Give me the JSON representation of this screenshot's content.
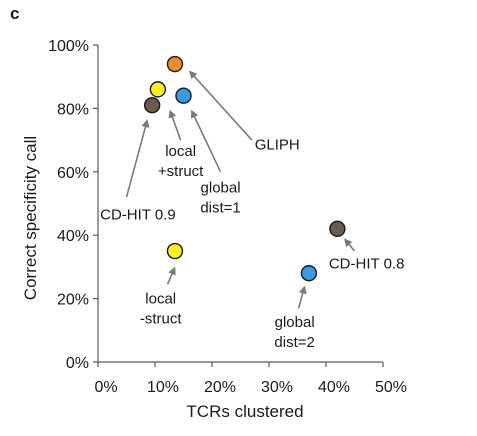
{
  "panel_label": "c",
  "colors": {
    "orange": "#f28a30",
    "blue": "#3a9ae0",
    "yellow": "#ffee22",
    "brown": "#6b5a4f"
  },
  "chart_data": {
    "type": "scatter",
    "xlabel": "TCRs clustered",
    "ylabel": "Correct specificity call",
    "xlim": [
      0,
      50
    ],
    "ylim": [
      0,
      100
    ],
    "x_ticks": [
      "0%",
      "10%",
      "20%",
      "30%",
      "40%",
      "50%"
    ],
    "y_ticks": [
      "0%",
      "20%",
      "40%",
      "60%",
      "80%",
      "100%"
    ],
    "grid": false,
    "points": [
      {
        "method": "GLIPH",
        "x": 13.5,
        "y": 94,
        "color": "orange"
      },
      {
        "method": "local +struct",
        "x": 10.5,
        "y": 86,
        "color": "yellow"
      },
      {
        "method": "global dist=1",
        "x": 15,
        "y": 84,
        "color": "blue"
      },
      {
        "method": "CD-HIT 0.9",
        "x": 9.5,
        "y": 81,
        "color": "brown"
      },
      {
        "method": "local -struct",
        "x": 13.5,
        "y": 35,
        "color": "yellow"
      },
      {
        "method": "CD-HIT 0.8",
        "x": 42,
        "y": 42,
        "color": "brown"
      },
      {
        "method": "global dist=2",
        "x": 37,
        "y": 28,
        "color": "blue"
      }
    ],
    "annotations": [
      {
        "lines": [
          "GLIPH"
        ],
        "text_x": 27.5,
        "text_y": 67,
        "anchor": "start",
        "arrow_from": [
          27,
          70
        ],
        "arrow_to": [
          16.2,
          91.5
        ]
      },
      {
        "lines": [
          "local",
          "+struct"
        ],
        "text_x": 14.5,
        "text_y": 65,
        "anchor": "middle",
        "arrow_from": [
          14.5,
          70
        ],
        "arrow_to": [
          12.7,
          79
        ]
      },
      {
        "lines": [
          "global",
          "dist=1"
        ],
        "text_x": 21.5,
        "text_y": 53.5,
        "anchor": "middle",
        "arrow_from": [
          21.5,
          60
        ],
        "arrow_to": [
          16.5,
          79
        ]
      },
      {
        "lines": [
          "CD-HIT 0.9"
        ],
        "text_x": 7,
        "text_y": 45,
        "anchor": "middle",
        "arrow_from": [
          5,
          52
        ],
        "arrow_to": [
          8.6,
          76
        ]
      },
      {
        "lines": [
          "local",
          "-struct"
        ],
        "text_x": 11,
        "text_y": 18.5,
        "anchor": "middle",
        "arrow_from": [
          12.2,
          24.5
        ],
        "arrow_to": [
          13.4,
          29.5
        ]
      },
      {
        "lines": [
          "CD-HIT 0.8"
        ],
        "text_x": 40.5,
        "text_y": 29.5,
        "anchor": "start",
        "arrow_from": [
          45,
          35
        ],
        "arrow_to": [
          43.4,
          38.5
        ]
      },
      {
        "lines": [
          "global",
          "dist=2"
        ],
        "text_x": 34.5,
        "text_y": 11,
        "anchor": "middle",
        "arrow_from": [
          35.2,
          17
        ],
        "arrow_to": [
          36.2,
          23.5
        ]
      }
    ]
  }
}
